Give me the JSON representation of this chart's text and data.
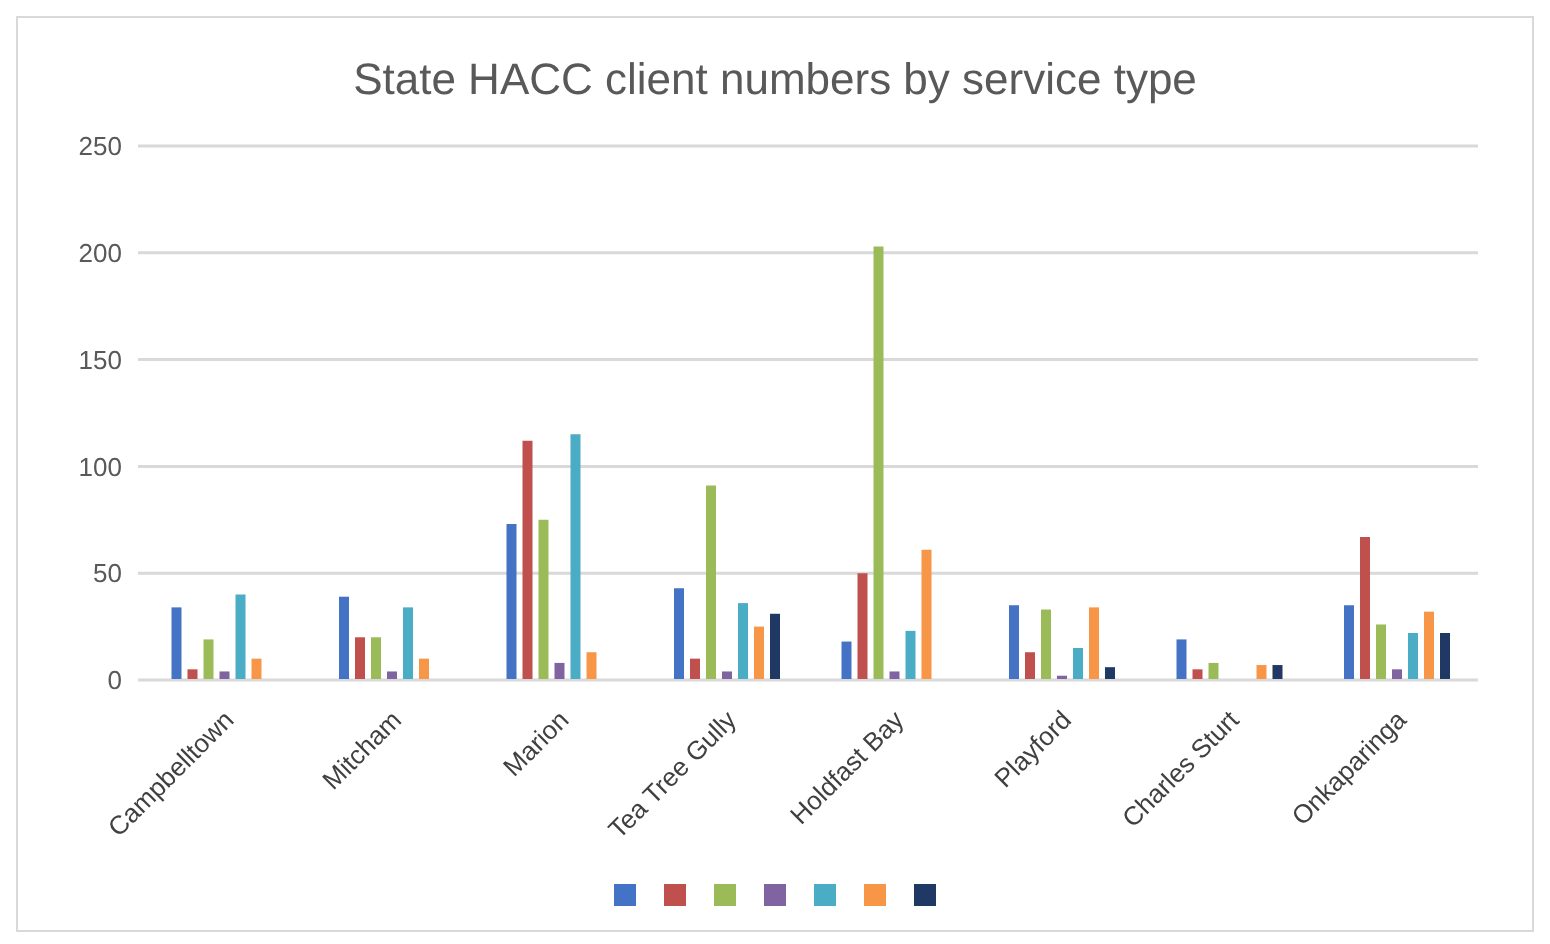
{
  "chart_data": {
    "type": "bar",
    "title": "State HACC client numbers by service type",
    "categories": [
      "Campbelltown",
      "Mitcham",
      "Marion",
      "Tea Tree Gully",
      "Holdfast Bay",
      "Playford",
      "Charles Sturt",
      "Onkaparinga"
    ],
    "series": [
      {
        "color": "#4472c4",
        "values": [
          34,
          39,
          73,
          43,
          18,
          35,
          19,
          35
        ]
      },
      {
        "color": "#c0504d",
        "values": [
          5,
          20,
          112,
          10,
          50,
          13,
          5,
          67
        ]
      },
      {
        "color": "#9bbb59",
        "values": [
          19,
          20,
          75,
          91,
          203,
          33,
          8,
          26
        ]
      },
      {
        "color": "#8064a2",
        "values": [
          4,
          4,
          8,
          4,
          4,
          2,
          0,
          5
        ]
      },
      {
        "color": "#4bacc6",
        "values": [
          40,
          34,
          115,
          36,
          23,
          15,
          0,
          22
        ]
      },
      {
        "color": "#f79646",
        "values": [
          10,
          10,
          13,
          25,
          61,
          34,
          7,
          32
        ]
      },
      {
        "color": "#1f3864",
        "values": [
          0,
          0,
          0,
          31,
          0,
          6,
          7,
          22
        ]
      }
    ],
    "ylim": [
      0,
      250
    ],
    "yticks": [
      0,
      50,
      100,
      150,
      200,
      250
    ],
    "grid": "y"
  }
}
